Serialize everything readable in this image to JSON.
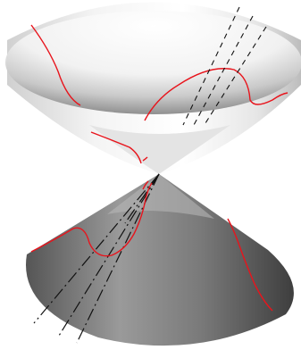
{
  "figure": {
    "surface": "double-cone",
    "colors": {
      "background": "#ffffff",
      "upper_cone_light": "#ffffff",
      "upper_cone_dark": "#8a8a8a",
      "lower_cone_light": "#c4c4c4",
      "lower_cone_dark": "#4a4a4a",
      "curve": "#e8141c",
      "dashed_line": "#111111"
    },
    "curve_count_upper": 4,
    "curve_count_lower": 3,
    "dashed_lines_upper": 3,
    "dashed_lines_lower": 4
  }
}
